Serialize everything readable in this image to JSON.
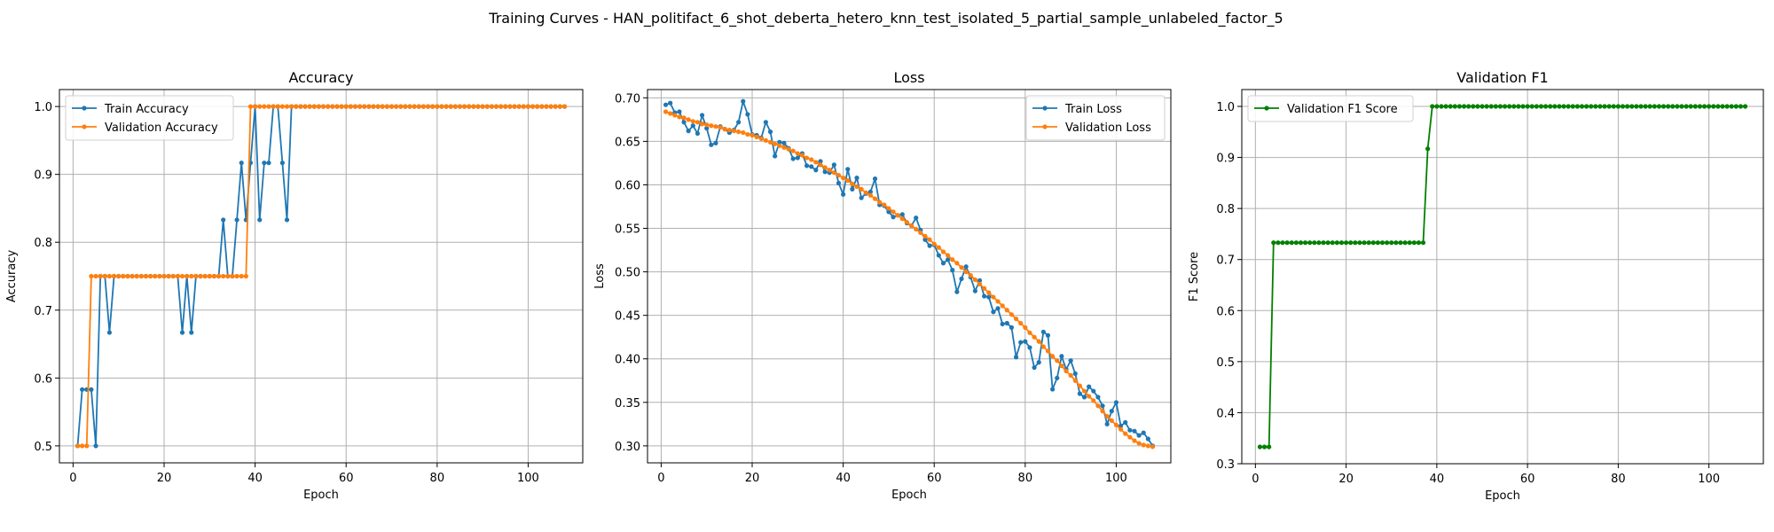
{
  "figure": {
    "suptitle": "Training Curves - HAN_politifact_6_shot_deberta_hetero_knn_test_isolated_5_partial_sample_unlabeled_factor_5"
  },
  "chart_data": [
    {
      "type": "line",
      "title": "Accuracy",
      "xlabel": "Epoch",
      "ylabel": "Accuracy",
      "xlim": [
        -3,
        112
      ],
      "ylim": [
        0.475,
        1.025
      ],
      "xticks": [
        0,
        20,
        40,
        60,
        80,
        100
      ],
      "yticks": [
        0.5,
        0.6,
        0.7,
        0.8,
        0.9,
        1.0
      ],
      "ytick_labels": [
        "0.5",
        "0.6",
        "0.7",
        "0.8",
        "0.9",
        "1.0"
      ],
      "grid": true,
      "legend": "upper-left",
      "series": [
        {
          "name": "Train Accuracy",
          "color": "#1f77b4",
          "x_start": 1,
          "values": [
            0.5,
            0.583,
            0.583,
            0.583,
            0.5,
            0.75,
            0.75,
            0.667,
            0.75,
            0.75,
            0.75,
            0.75,
            0.75,
            0.75,
            0.75,
            0.75,
            0.75,
            0.75,
            0.75,
            0.75,
            0.75,
            0.75,
            0.75,
            0.667,
            0.75,
            0.667,
            0.75,
            0.75,
            0.75,
            0.75,
            0.75,
            0.75,
            0.833,
            0.75,
            0.75,
            0.833,
            0.917,
            0.833,
            0.917,
            1.0,
            0.833,
            0.917,
            0.917,
            1.0,
            1.0,
            0.917,
            0.833,
            1.0,
            1.0,
            1.0,
            1.0,
            1.0,
            1.0,
            1.0,
            1.0,
            1.0,
            1.0,
            1.0,
            1.0,
            1.0,
            1.0,
            1.0,
            1.0,
            1.0,
            1.0,
            1.0,
            1.0,
            1.0,
            1.0,
            1.0,
            1.0,
            1.0,
            1.0,
            1.0,
            1.0,
            1.0,
            1.0,
            1.0,
            1.0,
            1.0,
            1.0,
            1.0,
            1.0,
            1.0,
            1.0,
            1.0,
            1.0,
            1.0,
            1.0,
            1.0,
            1.0,
            1.0,
            1.0,
            1.0,
            1.0,
            1.0,
            1.0,
            1.0,
            1.0,
            1.0,
            1.0,
            1.0,
            1.0,
            1.0,
            1.0,
            1.0,
            1.0,
            1.0
          ]
        },
        {
          "name": "Validation Accuracy",
          "color": "#ff7f0e",
          "x_start": 1,
          "values": [
            0.5,
            0.5,
            0.5,
            0.75,
            0.75,
            0.75,
            0.75,
            0.75,
            0.75,
            0.75,
            0.75,
            0.75,
            0.75,
            0.75,
            0.75,
            0.75,
            0.75,
            0.75,
            0.75,
            0.75,
            0.75,
            0.75,
            0.75,
            0.75,
            0.75,
            0.75,
            0.75,
            0.75,
            0.75,
            0.75,
            0.75,
            0.75,
            0.75,
            0.75,
            0.75,
            0.75,
            0.75,
            0.75,
            1.0,
            1.0,
            1.0,
            1.0,
            1.0,
            1.0,
            1.0,
            1.0,
            1.0,
            1.0,
            1.0,
            1.0,
            1.0,
            1.0,
            1.0,
            1.0,
            1.0,
            1.0,
            1.0,
            1.0,
            1.0,
            1.0,
            1.0,
            1.0,
            1.0,
            1.0,
            1.0,
            1.0,
            1.0,
            1.0,
            1.0,
            1.0,
            1.0,
            1.0,
            1.0,
            1.0,
            1.0,
            1.0,
            1.0,
            1.0,
            1.0,
            1.0,
            1.0,
            1.0,
            1.0,
            1.0,
            1.0,
            1.0,
            1.0,
            1.0,
            1.0,
            1.0,
            1.0,
            1.0,
            1.0,
            1.0,
            1.0,
            1.0,
            1.0,
            1.0,
            1.0,
            1.0,
            1.0,
            1.0,
            1.0,
            1.0,
            1.0,
            1.0,
            1.0,
            1.0
          ]
        }
      ]
    },
    {
      "type": "line",
      "title": "Loss",
      "xlabel": "Epoch",
      "ylabel": "Loss",
      "xlim": [
        -3,
        112
      ],
      "ylim": [
        0.2805,
        0.7095
      ],
      "xticks": [
        0,
        20,
        40,
        60,
        80,
        100
      ],
      "yticks": [
        0.3,
        0.35,
        0.4,
        0.45,
        0.5,
        0.55,
        0.6,
        0.65,
        0.7
      ],
      "ytick_labels": [
        "0.30",
        "0.35",
        "0.40",
        "0.45",
        "0.50",
        "0.55",
        "0.60",
        "0.65",
        "0.70"
      ],
      "grid": true,
      "legend": "upper-right",
      "series": [
        {
          "name": "Train Loss",
          "color": "#1f77b4",
          "x_start": 1,
          "values": [
            0.692,
            0.694,
            0.683,
            0.684,
            0.672,
            0.662,
            0.668,
            0.659,
            0.68,
            0.665,
            0.646,
            0.648,
            0.667,
            0.664,
            0.66,
            0.663,
            0.672,
            0.696,
            0.681,
            0.658,
            0.657,
            0.654,
            0.672,
            0.661,
            0.633,
            0.649,
            0.648,
            0.642,
            0.63,
            0.631,
            0.636,
            0.622,
            0.621,
            0.617,
            0.627,
            0.615,
            0.614,
            0.623,
            0.602,
            0.589,
            0.618,
            0.595,
            0.608,
            0.585,
            0.59,
            0.592,
            0.607,
            0.577,
            0.576,
            0.569,
            0.563,
            0.565,
            0.566,
            0.556,
            0.553,
            0.562,
            0.548,
            0.537,
            0.53,
            0.531,
            0.519,
            0.51,
            0.514,
            0.502,
            0.477,
            0.492,
            0.506,
            0.494,
            0.478,
            0.49,
            0.472,
            0.471,
            0.454,
            0.458,
            0.44,
            0.441,
            0.436,
            0.402,
            0.419,
            0.42,
            0.413,
            0.39,
            0.396,
            0.431,
            0.427,
            0.365,
            0.378,
            0.403,
            0.388,
            0.398,
            0.383,
            0.36,
            0.356,
            0.368,
            0.363,
            0.356,
            0.346,
            0.325,
            0.34,
            0.35,
            0.323,
            0.327,
            0.318,
            0.317,
            0.312,
            0.315,
            0.308,
            0.3
          ]
        },
        {
          "name": "Validation Loss",
          "color": "#ff7f0e",
          "x_start": 1,
          "values": [
            0.684,
            0.682,
            0.68,
            0.678,
            0.677,
            0.675,
            0.673,
            0.672,
            0.67,
            0.669,
            0.668,
            0.667,
            0.666,
            0.664,
            0.663,
            0.662,
            0.661,
            0.66,
            0.658,
            0.657,
            0.655,
            0.653,
            0.651,
            0.649,
            0.647,
            0.645,
            0.643,
            0.641,
            0.639,
            0.636,
            0.634,
            0.631,
            0.629,
            0.626,
            0.623,
            0.62,
            0.617,
            0.614,
            0.611,
            0.608,
            0.605,
            0.601,
            0.598,
            0.595,
            0.591,
            0.588,
            0.584,
            0.58,
            0.577,
            0.573,
            0.569,
            0.565,
            0.561,
            0.557,
            0.553,
            0.549,
            0.545,
            0.541,
            0.537,
            0.532,
            0.528,
            0.523,
            0.519,
            0.514,
            0.51,
            0.505,
            0.5,
            0.496,
            0.491,
            0.486,
            0.481,
            0.476,
            0.471,
            0.466,
            0.461,
            0.456,
            0.451,
            0.446,
            0.441,
            0.436,
            0.43,
            0.425,
            0.42,
            0.414,
            0.409,
            0.403,
            0.398,
            0.392,
            0.386,
            0.381,
            0.375,
            0.369,
            0.363,
            0.357,
            0.352,
            0.346,
            0.34,
            0.334,
            0.329,
            0.324,
            0.319,
            0.314,
            0.31,
            0.306,
            0.303,
            0.301,
            0.3,
            0.299
          ]
        }
      ]
    },
    {
      "type": "line",
      "title": "Validation F1",
      "xlabel": "Epoch",
      "ylabel": "F1 Score",
      "xlim": [
        -3,
        112
      ],
      "ylim": [
        0.3,
        1.033
      ],
      "xticks": [
        0,
        20,
        40,
        60,
        80,
        100
      ],
      "yticks": [
        0.3,
        0.4,
        0.5,
        0.6,
        0.7,
        0.8,
        0.9,
        1.0
      ],
      "ytick_labels": [
        "0.3",
        "0.4",
        "0.5",
        "0.6",
        "0.7",
        "0.8",
        "0.9",
        "1.0"
      ],
      "grid": true,
      "legend": "upper-left",
      "series": [
        {
          "name": "Validation F1 Score",
          "color": "#008000",
          "x_start": 1,
          "values": [
            0.333,
            0.333,
            0.333,
            0.733,
            0.733,
            0.733,
            0.733,
            0.733,
            0.733,
            0.733,
            0.733,
            0.733,
            0.733,
            0.733,
            0.733,
            0.733,
            0.733,
            0.733,
            0.733,
            0.733,
            0.733,
            0.733,
            0.733,
            0.733,
            0.733,
            0.733,
            0.733,
            0.733,
            0.733,
            0.733,
            0.733,
            0.733,
            0.733,
            0.733,
            0.733,
            0.733,
            0.733,
            0.917,
            1.0,
            1.0,
            1.0,
            1.0,
            1.0,
            1.0,
            1.0,
            1.0,
            1.0,
            1.0,
            1.0,
            1.0,
            1.0,
            1.0,
            1.0,
            1.0,
            1.0,
            1.0,
            1.0,
            1.0,
            1.0,
            1.0,
            1.0,
            1.0,
            1.0,
            1.0,
            1.0,
            1.0,
            1.0,
            1.0,
            1.0,
            1.0,
            1.0,
            1.0,
            1.0,
            1.0,
            1.0,
            1.0,
            1.0,
            1.0,
            1.0,
            1.0,
            1.0,
            1.0,
            1.0,
            1.0,
            1.0,
            1.0,
            1.0,
            1.0,
            1.0,
            1.0,
            1.0,
            1.0,
            1.0,
            1.0,
            1.0,
            1.0,
            1.0,
            1.0,
            1.0,
            1.0,
            1.0,
            1.0,
            1.0,
            1.0,
            1.0,
            1.0,
            1.0,
            1.0
          ]
        }
      ]
    }
  ]
}
